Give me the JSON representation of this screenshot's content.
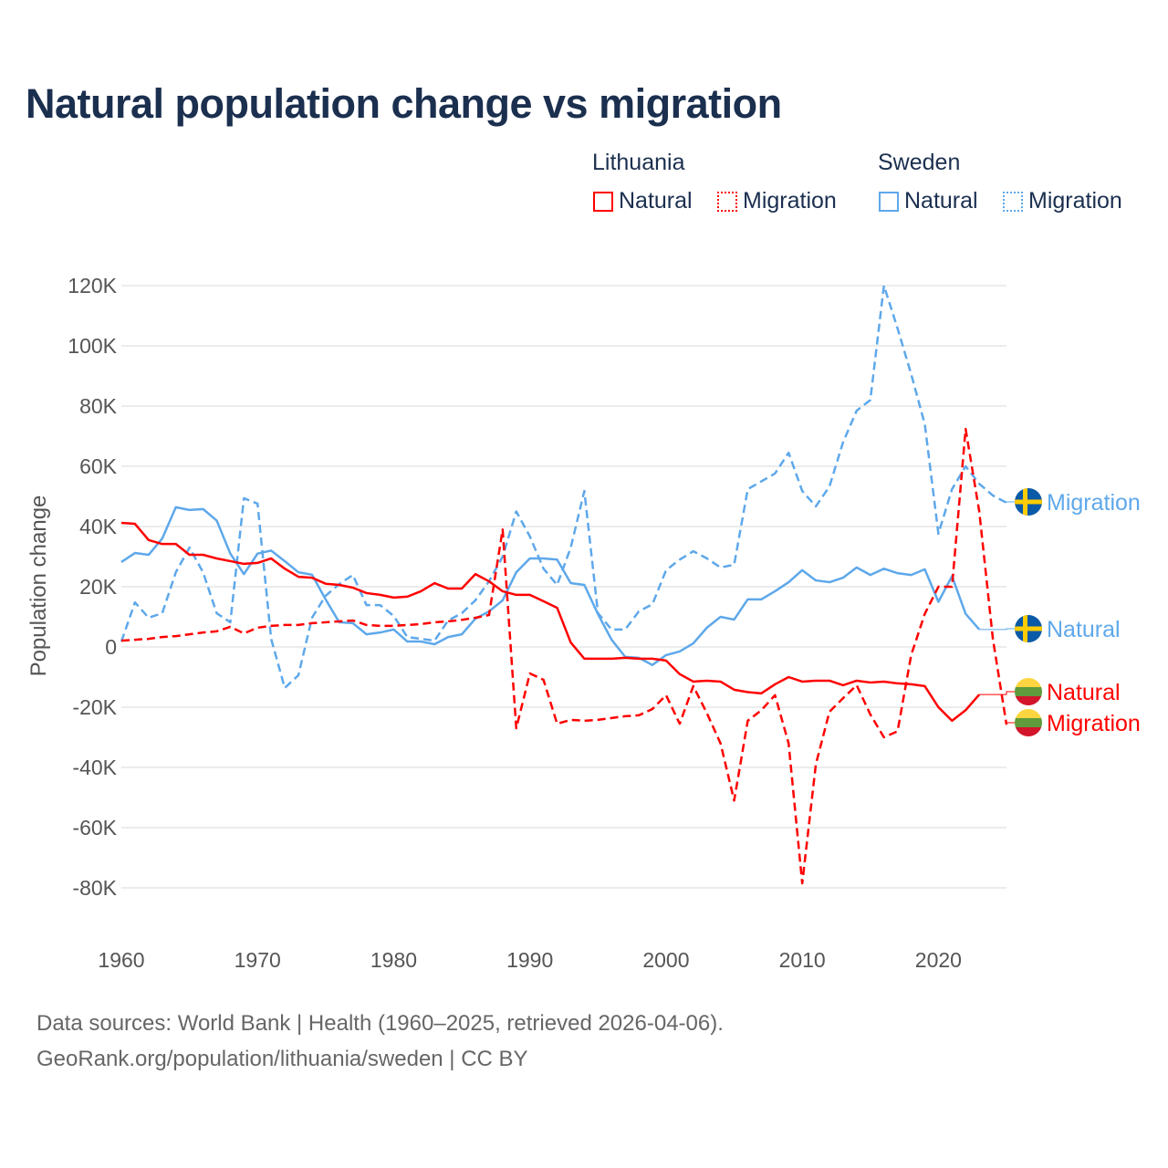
{
  "title": "Natural population change vs migration",
  "legend": {
    "groups": [
      {
        "label": "Lithuania",
        "items": [
          {
            "label": "Natural",
            "style": "solid"
          },
          {
            "label": "Migration",
            "style": "dotted"
          }
        ],
        "color": "#ff0000"
      },
      {
        "label": "Sweden",
        "items": [
          {
            "label": "Natural",
            "style": "solid"
          },
          {
            "label": "Migration",
            "style": "dotted"
          }
        ],
        "color": "#5ea8ea"
      }
    ]
  },
  "footer": {
    "line1": "Data sources: World Bank | Health (1960–2025, retrieved 2026-04-06).",
    "line2": "GeoRank.org/population/lithuania/sweden | CC BY"
  },
  "chart_data": {
    "type": "line",
    "title": "Natural population change vs migration",
    "xlabel": "",
    "ylabel": "Population change",
    "xlim": [
      1960,
      2025
    ],
    "ylim": [
      -90000,
      125000
    ],
    "yticks": [
      -80000,
      -60000,
      -40000,
      -20000,
      0,
      20000,
      40000,
      60000,
      80000,
      100000,
      120000
    ],
    "ytick_labels": [
      "-80K",
      "-60K",
      "-40K",
      "-20K",
      "0",
      "20K",
      "40K",
      "60K",
      "80K",
      "100K",
      "120K"
    ],
    "xticks": [
      1960,
      1970,
      1980,
      1990,
      2000,
      2010,
      2020
    ],
    "xtick_labels": [
      "1960",
      "1970",
      "1980",
      "1990",
      "2000",
      "2010",
      "2020"
    ],
    "grid": true,
    "legend_position": "top-right",
    "series": [
      {
        "name": "Sweden Migration",
        "end_label": "Migration",
        "country": "Sweden",
        "color": "#5ea8ea",
        "dash": true,
        "start_year": 1960,
        "values_k": [
          1.8,
          14.8,
          9.7,
          11.2,
          24.8,
          33,
          24.8,
          11.2,
          8.2,
          49.4,
          47.6,
          2.7,
          -13.6,
          -9.4,
          9.7,
          17,
          20.9,
          23.9,
          13.9,
          13.9,
          10.3,
          3.3,
          2.7,
          2.1,
          8.8,
          11.2,
          15.5,
          21.8,
          30,
          45,
          36.7,
          26,
          20.6,
          33,
          51.8,
          11.2,
          5.8,
          5.8,
          11.8,
          14.2,
          25.5,
          29,
          31.8,
          29.4,
          26.4,
          27.3,
          52.4,
          55,
          57.6,
          64.5,
          51.8,
          46.7,
          53.3,
          68,
          78.5,
          82,
          120,
          105.8,
          90.6,
          74,
          37.6,
          52.4,
          60,
          54.2,
          50.3,
          47.9
        ]
      },
      {
        "name": "Sweden Natural",
        "end_label": "Natural",
        "country": "Sweden",
        "color": "#5ea8ea",
        "dash": false,
        "start_year": 1960,
        "values_k": [
          28.2,
          31.2,
          30.6,
          36,
          46.4,
          45.5,
          45.8,
          42,
          31,
          24.2,
          31,
          32,
          28.5,
          24.8,
          24,
          15.8,
          8.2,
          7.9,
          4.2,
          4.8,
          5.8,
          1.8,
          1.8,
          0.9,
          3.3,
          4.2,
          9.4,
          11.8,
          15.5,
          24.8,
          29.4,
          29.4,
          29,
          21.2,
          20.6,
          10.9,
          2.4,
          -3.3,
          -3.6,
          -6,
          -2.7,
          -1.5,
          1.2,
          6.4,
          10,
          9.1,
          15.8,
          15.8,
          18.5,
          21.5,
          25.5,
          22.1,
          21.5,
          23,
          26.4,
          23.9,
          26,
          24.5,
          23.9,
          25.8,
          15,
          23.5,
          11,
          5.8
        ]
      },
      {
        "name": "Lithuania Natural",
        "end_label": "Natural",
        "country": "Lithuania",
        "color": "#ff0000",
        "dash": false,
        "start_year": 1960,
        "values_k": [
          41.2,
          40.9,
          35.5,
          34.2,
          34.2,
          30.6,
          30.6,
          29.4,
          28.5,
          27.6,
          27.9,
          29.4,
          26,
          23.3,
          23,
          21,
          20.6,
          19.7,
          17.9,
          17.3,
          16.4,
          16.7,
          18.5,
          21.2,
          19.4,
          19.4,
          24.2,
          21.8,
          18.5,
          17.3,
          17.3,
          15.2,
          13,
          1.5,
          -3.9,
          -3.9,
          -3.9,
          -3.6,
          -3.9,
          -3.9,
          -4.5,
          -9,
          -11.5,
          -11.2,
          -11.5,
          -14.2,
          -15,
          -15.4,
          -12.4,
          -10,
          -11.5,
          -11.2,
          -11.2,
          -12.7,
          -11.2,
          -11.8,
          -11.5,
          -12.1,
          -12.4,
          -13,
          -20,
          -24.5,
          -21,
          -15.8
        ]
      },
      {
        "name": "Lithuania Migration",
        "end_label": "Migration",
        "country": "Lithuania",
        "color": "#ff0000",
        "dash": true,
        "start_year": 1960,
        "values_k": [
          2.1,
          2.4,
          2.7,
          3.3,
          3.6,
          4.2,
          4.8,
          5.2,
          6.7,
          4.5,
          6.4,
          7,
          7.3,
          7.3,
          7.9,
          8.2,
          8.5,
          8.8,
          7.3,
          7,
          7,
          7.3,
          7.6,
          8.2,
          8.5,
          9,
          9.7,
          10.6,
          39,
          -27,
          -8.8,
          -10.9,
          -25.5,
          -24.2,
          -24.5,
          -24.2,
          -23.6,
          -23,
          -22.7,
          -20.6,
          -16,
          -25.5,
          -13,
          -22,
          -32,
          -51,
          -24.5,
          -21,
          -16,
          -32,
          -78.5,
          -39,
          -21.5,
          -17,
          -12.7,
          -22.4,
          -30,
          -28,
          -2.7,
          11,
          20,
          20,
          72.4,
          45,
          2.7,
          -25.8
        ]
      }
    ]
  }
}
